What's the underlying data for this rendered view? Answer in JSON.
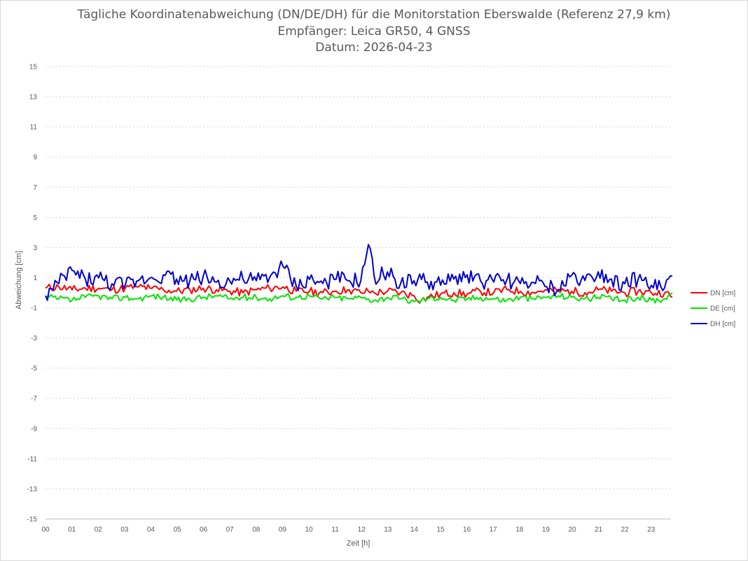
{
  "chart_data": {
    "type": "line",
    "title_lines": [
      "Tägliche Koordinatenabweichung (DN/DE/DH) für die Monitorstation Eberswalde (Referenz 27,9 km)",
      "Empfänger: Leica GR50, 4 GNSS",
      "Datum: 2026-04-23"
    ],
    "xlabel": "Zeit [h]",
    "ylabel": "Abweichung [cm]",
    "x_tick_labels": [
      "00",
      "01",
      "02",
      "03",
      "04",
      "05",
      "06",
      "07",
      "08",
      "09",
      "10",
      "11",
      "12",
      "13",
      "14",
      "15",
      "16",
      "17",
      "18",
      "19",
      "20",
      "21",
      "22",
      "23"
    ],
    "y_tick_labels": [
      "15",
      "13",
      "11",
      "9",
      "7",
      "5",
      "3",
      "1",
      "-1",
      "-3",
      "-5",
      "-7",
      "-9",
      "-11",
      "-13",
      "-15"
    ],
    "xlim": [
      0,
      24
    ],
    "ylim": [
      -15,
      15
    ],
    "grid": "horizontal dotted",
    "legend_position": "right",
    "x_hours": [
      0,
      0.5,
      1,
      1.5,
      2,
      2.5,
      3,
      3.5,
      4,
      4.5,
      5,
      5.5,
      6,
      6.5,
      7,
      7.5,
      8,
      8.5,
      9,
      9.5,
      10,
      10.5,
      11,
      11.5,
      12,
      12.25,
      12.5,
      13,
      13.5,
      14,
      14.25,
      14.5,
      15,
      15.5,
      16,
      16.5,
      17,
      17.5,
      18,
      18.5,
      19,
      19.5,
      20,
      20.5,
      21,
      21.5,
      22,
      22.5,
      23,
      23.5,
      23.8
    ],
    "series": [
      {
        "name": "DN [cm]",
        "color": "#ff0000",
        "values": [
          0.3,
          0.4,
          0.2,
          0.3,
          0.3,
          0.2,
          0.3,
          0.4,
          0.3,
          0.2,
          0.1,
          0.2,
          0.3,
          0.2,
          0.1,
          0.0,
          0.2,
          0.3,
          0.4,
          0.1,
          0.1,
          0.0,
          0.1,
          0.2,
          0.0,
          0.1,
          0.0,
          0.1,
          0.0,
          -0.2,
          -0.5,
          -0.3,
          -0.1,
          0.0,
          -0.1,
          0.1,
          0.0,
          0.2,
          0.1,
          0.0,
          0.2,
          0.1,
          0.1,
          0.0,
          0.2,
          0.1,
          0.0,
          0.1,
          0.0,
          0.0,
          -0.3
        ]
      },
      {
        "name": "DE [cm]",
        "color": "#00e600",
        "values": [
          -0.3,
          -0.4,
          -0.5,
          -0.3,
          -0.2,
          -0.4,
          -0.3,
          -0.4,
          -0.2,
          -0.3,
          -0.5,
          -0.4,
          -0.3,
          -0.2,
          -0.4,
          -0.3,
          -0.3,
          -0.4,
          -0.2,
          -0.3,
          -0.2,
          -0.4,
          -0.3,
          -0.4,
          -0.3,
          -0.4,
          -0.5,
          -0.3,
          -0.4,
          -0.6,
          -0.5,
          -0.4,
          -0.3,
          -0.5,
          -0.4,
          -0.3,
          -0.4,
          -0.5,
          -0.3,
          -0.4,
          -0.3,
          -0.2,
          -0.3,
          -0.4,
          -0.3,
          -0.4,
          -0.5,
          -0.3,
          -0.5,
          -0.4,
          0.0
        ]
      },
      {
        "name": "DH [cm]",
        "color": "#0000cc",
        "values": [
          -0.2,
          0.6,
          1.5,
          0.9,
          1.0,
          0.6,
          0.5,
          0.8,
          1.0,
          1.2,
          0.9,
          0.8,
          1.1,
          0.7,
          0.8,
          0.9,
          0.8,
          1.0,
          1.8,
          0.4,
          0.9,
          0.6,
          0.9,
          0.8,
          0.8,
          3.3,
          0.9,
          1.4,
          0.6,
          0.8,
          0.9,
          0.7,
          0.5,
          0.9,
          1.2,
          0.8,
          0.7,
          0.9,
          0.6,
          0.7,
          0.4,
          0.2,
          1.2,
          0.8,
          1.4,
          0.9,
          0.6,
          0.9,
          0.5,
          0.3,
          1.1
        ]
      }
    ]
  }
}
